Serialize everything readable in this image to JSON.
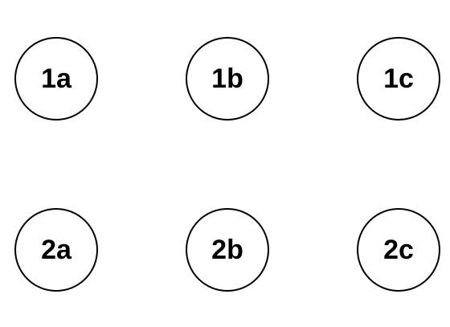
{
  "diagram": {
    "rows": [
      {
        "nodes": [
          {
            "label": "1a"
          },
          {
            "label": "1b"
          },
          {
            "label": "1c"
          }
        ]
      },
      {
        "nodes": [
          {
            "label": "2a"
          },
          {
            "label": "2b"
          },
          {
            "label": "2c"
          }
        ]
      }
    ],
    "colors": {
      "background": "#ffffff",
      "stroke": "#000000",
      "text": "#000000"
    }
  }
}
